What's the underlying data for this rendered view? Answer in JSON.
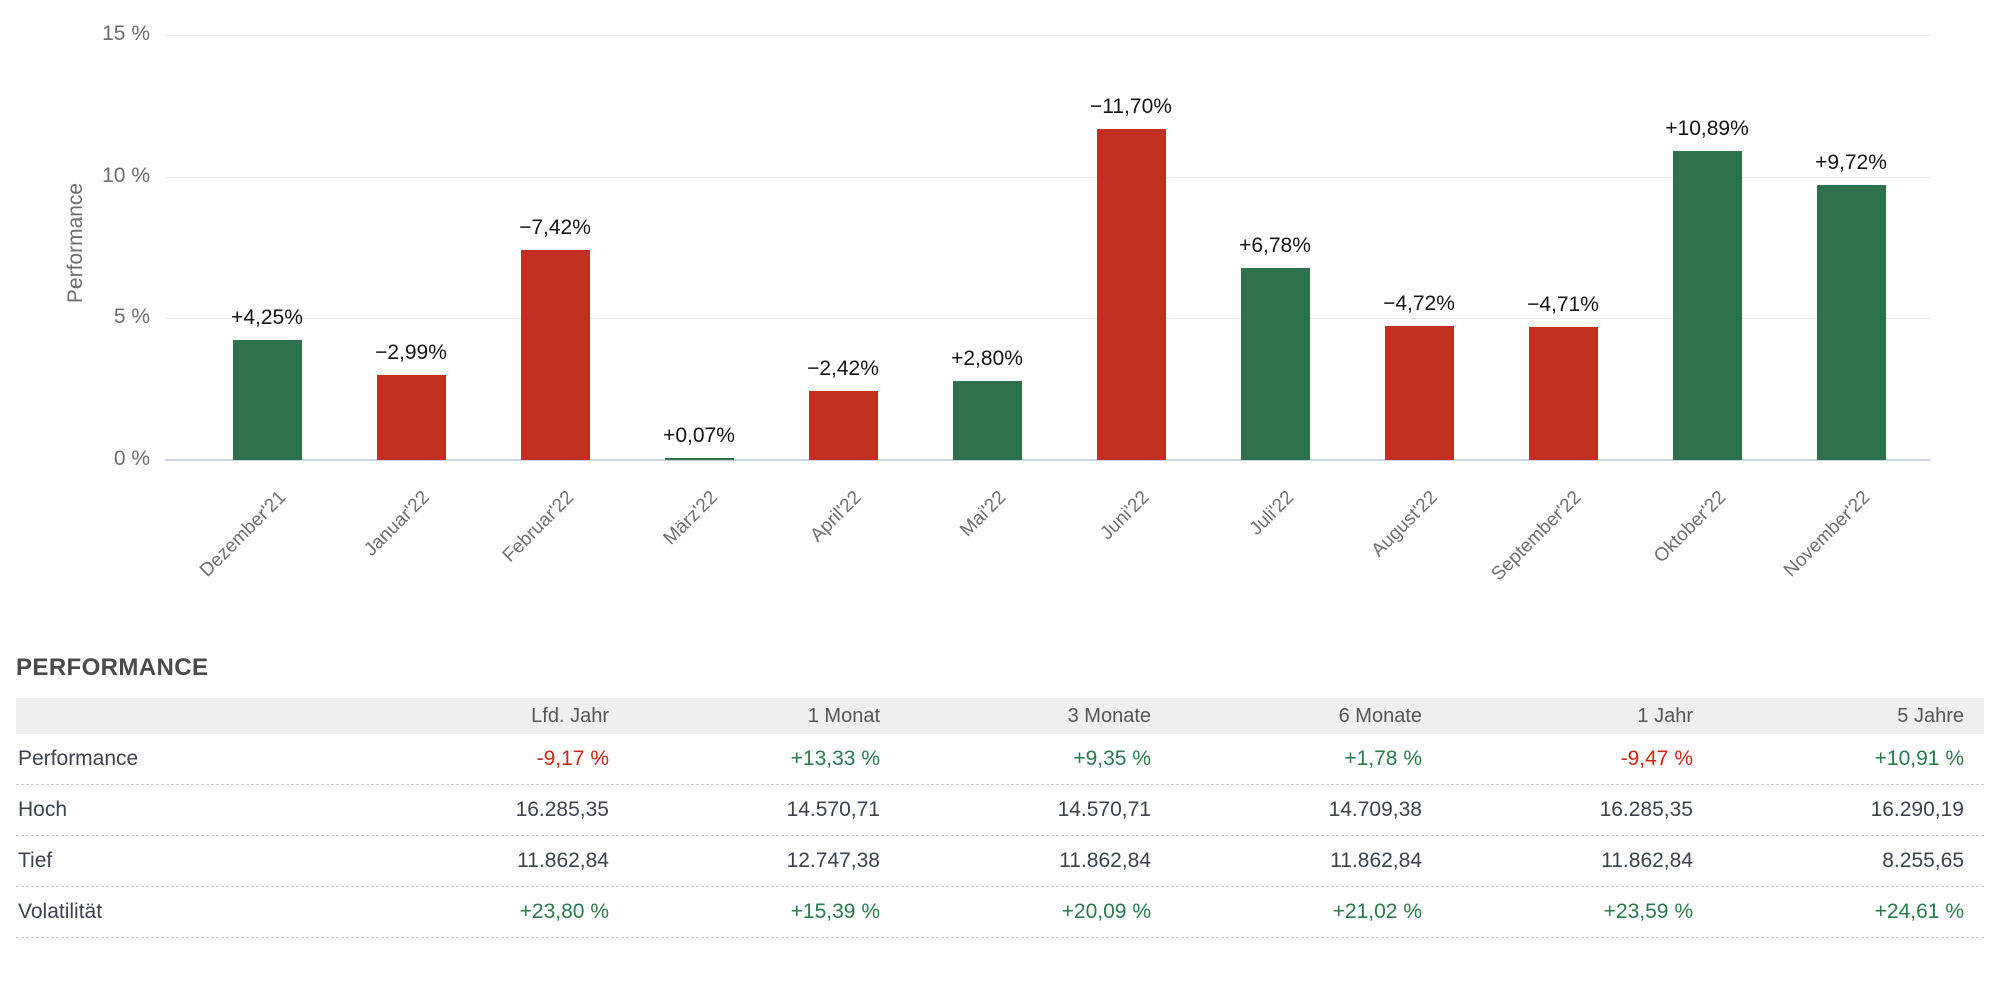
{
  "chart_data": {
    "type": "bar",
    "title": "",
    "xlabel": "",
    "ylabel": "Performance",
    "ylim": [
      0,
      15
    ],
    "grid": "horizontal",
    "bars_show_absolute_value": true,
    "yticks": [
      {
        "value": 0,
        "label": "0 %"
      },
      {
        "value": 5,
        "label": "5 %"
      },
      {
        "value": 10,
        "label": "10 %"
      },
      {
        "value": 15,
        "label": "15 %"
      }
    ],
    "categories": [
      "Dezember'21",
      "Januar'22",
      "Februar'22",
      "März'22",
      "April'22",
      "Mai'22",
      "Juni'22",
      "Juli'22",
      "August'22",
      "September'22",
      "Oktober'22",
      "November'22"
    ],
    "values": [
      4.25,
      -2.99,
      -7.42,
      0.07,
      -2.42,
      2.8,
      -11.7,
      6.78,
      -4.72,
      -4.71,
      10.89,
      9.72
    ],
    "bar_labels": [
      "+4,25%",
      "−2,99%",
      "−7,42%",
      "+0,07%",
      "−2,42%",
      "+2,80%",
      "−11,70%",
      "+6,78%",
      "−4,72%",
      "−4,71%",
      "+10,89%",
      "+9,72%"
    ],
    "colors": {
      "positive": "#2F714D",
      "negative": "#C02F21",
      "gridline": "#e8e8e8",
      "baseline": "#ccd4e6",
      "axis_text": "#6d6d6d",
      "value_text": "#141414"
    }
  },
  "table": {
    "title": "PERFORMANCE",
    "columns": [
      "Lfd. Jahr",
      "1 Monat",
      "3 Monate",
      "6 Monate",
      "1 Jahr",
      "5 Jahre"
    ],
    "rows": [
      {
        "label": "Performance",
        "colored": true,
        "values": [
          "-9,17 %",
          "+13,33 %",
          "+9,35 %",
          "+1,78 %",
          "-9,47 %",
          "+10,91 %"
        ]
      },
      {
        "label": "Hoch",
        "colored": false,
        "values": [
          "16.285,35",
          "14.570,71",
          "14.570,71",
          "14.709,38",
          "16.285,35",
          "16.290,19"
        ]
      },
      {
        "label": "Tief",
        "colored": false,
        "values": [
          "11.862,84",
          "12.747,38",
          "11.862,84",
          "11.862,84",
          "11.862,84",
          "8.255,65"
        ]
      },
      {
        "label": "Volatilität",
        "colored": true,
        "values": [
          "+23,80 %",
          "+15,39 %",
          "+20,09 %",
          "+21,02 %",
          "+23,59 %",
          "+24,61 %"
        ]
      }
    ],
    "text_colors": {
      "positive": "#2b7a4c",
      "negative": "#cd2617",
      "neutral": "#3c434c"
    }
  }
}
